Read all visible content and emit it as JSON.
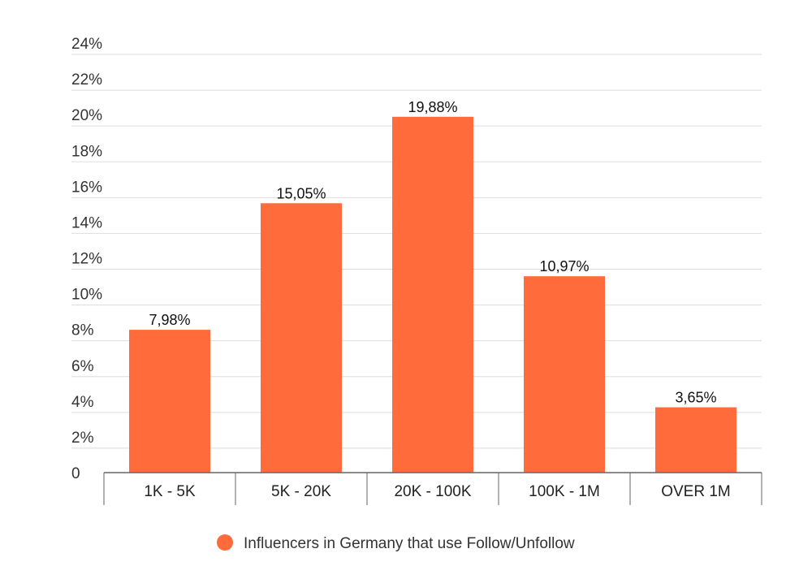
{
  "chart_data": {
    "type": "bar",
    "categories": [
      "1K - 5K",
      "5K - 20K",
      "20K - 100K",
      "100K - 1M",
      "OVER 1M"
    ],
    "series": [
      {
        "name": "Influencers in Germany that use Follow/Unfollow",
        "values": [
          7.98,
          15.05,
          19.88,
          10.97,
          3.65
        ],
        "labels": [
          "7,98%",
          "15,05%",
          "19,88%",
          "10,97%",
          "3,65%"
        ],
        "color": "#ff6b3b"
      }
    ],
    "ylim": [
      0,
      24
    ],
    "ytick_values": [
      0,
      2,
      4,
      6,
      8,
      10,
      12,
      14,
      16,
      18,
      20,
      22,
      24
    ],
    "ytick_labels": [
      "0",
      "2%",
      "4%",
      "6%",
      "8%",
      "10%",
      "12%",
      "14%",
      "16%",
      "18%",
      "20%",
      "22%",
      "24%"
    ],
    "grid": true,
    "legend": "bottom-center",
    "gridline_color": "#dddddd",
    "axis_color": "#666666"
  }
}
